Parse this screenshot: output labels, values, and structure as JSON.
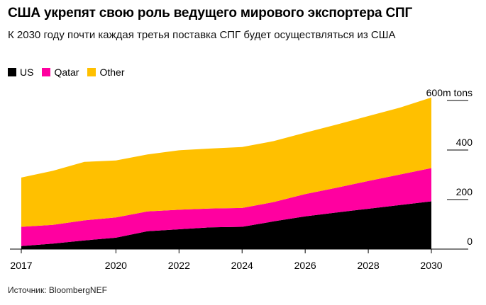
{
  "title": "США укрепят свою роль ведущего мирового экспортера СПГ",
  "subtitle": "К 2030 году почти каждая третья поставка СПГ будет осуществляться из США",
  "source": "Источник: BloombergNEF",
  "legend": [
    {
      "name": "US",
      "color": "#000000"
    },
    {
      "name": "Qatar",
      "color": "#ff00a0"
    },
    {
      "name": "Other",
      "color": "#ffc000"
    }
  ],
  "chart_data": {
    "type": "area",
    "stacked": true,
    "x": [
      2017,
      2018,
      2019,
      2020,
      2021,
      2022,
      2023,
      2024,
      2025,
      2026,
      2027,
      2028,
      2029,
      2030
    ],
    "x_tick_labels": [
      "2017",
      "2020",
      "2022",
      "2024",
      "2026",
      "2028",
      "2030"
    ],
    "y_tick_labels": [
      "0",
      "200",
      "400",
      "600m tons"
    ],
    "ylim": [
      0,
      620
    ],
    "series": [
      {
        "name": "US",
        "values": [
          12,
          22,
          35,
          46,
          72,
          80,
          88,
          90,
          112,
          132,
          148,
          163,
          178,
          193
        ]
      },
      {
        "name": "Qatar",
        "values": [
          78,
          76,
          81,
          82,
          80,
          79,
          76,
          76,
          78,
          90,
          100,
          112,
          123,
          134
        ]
      },
      {
        "name": "Other",
        "values": [
          199,
          218,
          236,
          230,
          230,
          240,
          242,
          246,
          246,
          248,
          255,
          262,
          270,
          285
        ]
      }
    ],
    "grid": false,
    "legend_position": "top-left"
  }
}
